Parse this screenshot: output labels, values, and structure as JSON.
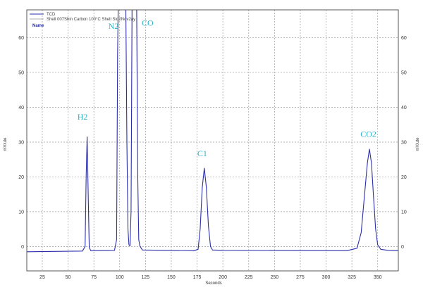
{
  "chart_data": {
    "type": "line",
    "title": "",
    "xlabel": "Seconds",
    "ylabel": "mV/ute",
    "y2label": "mV/ute",
    "xlim": [
      10,
      370
    ],
    "ylim": [
      -7,
      68
    ],
    "xticks": [
      25,
      50,
      75,
      100,
      125,
      150,
      175,
      200,
      225,
      250,
      275,
      300,
      325,
      350
    ],
    "yticks": [
      0,
      10,
      20,
      30,
      40,
      50,
      60
    ],
    "grid": true,
    "legend": {
      "position": "top-left",
      "entries": [
        "TCD",
        "Shell 007Shin Carbon 100°C Shell Std2Nov2ay"
      ],
      "note": "Name"
    },
    "series": [
      {
        "name": "TCD",
        "color": "#2b2fa8",
        "points": [
          [
            10,
            -1.5
          ],
          [
            64,
            -1.3
          ],
          [
            66.5,
            0
          ],
          [
            67.5,
            20
          ],
          [
            68.5,
            31.5
          ],
          [
            69.5,
            15
          ],
          [
            70.5,
            -0.3
          ],
          [
            72,
            -1.2
          ],
          [
            95,
            -1.1
          ],
          [
            97,
            2
          ],
          [
            98,
            55
          ],
          [
            98.5,
            68
          ],
          [
            99.5,
            68
          ],
          [
            100.5,
            68
          ],
          [
            101.5,
            68
          ],
          [
            103,
            68
          ],
          [
            104.5,
            68
          ],
          [
            106,
            68
          ],
          [
            107,
            30
          ],
          [
            108,
            5
          ],
          [
            109,
            0.5
          ],
          [
            110,
            0.2
          ],
          [
            111,
            10
          ],
          [
            112,
            68
          ],
          [
            113.5,
            68
          ],
          [
            115,
            68
          ],
          [
            116.5,
            68
          ],
          [
            117.5,
            20
          ],
          [
            118.5,
            2
          ],
          [
            119.5,
            0.2
          ],
          [
            122,
            -1.0
          ],
          [
            172,
            -1.2
          ],
          [
            176,
            -0.8
          ],
          [
            178,
            5
          ],
          [
            180,
            17
          ],
          [
            182,
            22.5
          ],
          [
            184,
            17
          ],
          [
            186,
            6
          ],
          [
            188,
            0
          ],
          [
            190,
            -1.0
          ],
          [
            200,
            -1.1
          ],
          [
            320,
            -1.2
          ],
          [
            330,
            -0.5
          ],
          [
            334,
            4
          ],
          [
            337,
            14
          ],
          [
            340,
            24
          ],
          [
            342,
            28
          ],
          [
            344,
            24
          ],
          [
            346,
            14
          ],
          [
            348,
            5
          ],
          [
            350,
            0.5
          ],
          [
            353,
            -0.8
          ],
          [
            360,
            -1.1
          ],
          [
            370,
            -1.2
          ]
        ]
      }
    ],
    "annotations": [
      {
        "text": "H2",
        "x": 64,
        "y": 36.5
      },
      {
        "text": "N2",
        "x": 94,
        "y": 62.5
      },
      {
        "text": "CO",
        "x": 127,
        "y": 63.5
      },
      {
        "text": "C1",
        "x": 180,
        "y": 26
      },
      {
        "text": "CO2",
        "x": 341,
        "y": 31.5
      }
    ]
  }
}
